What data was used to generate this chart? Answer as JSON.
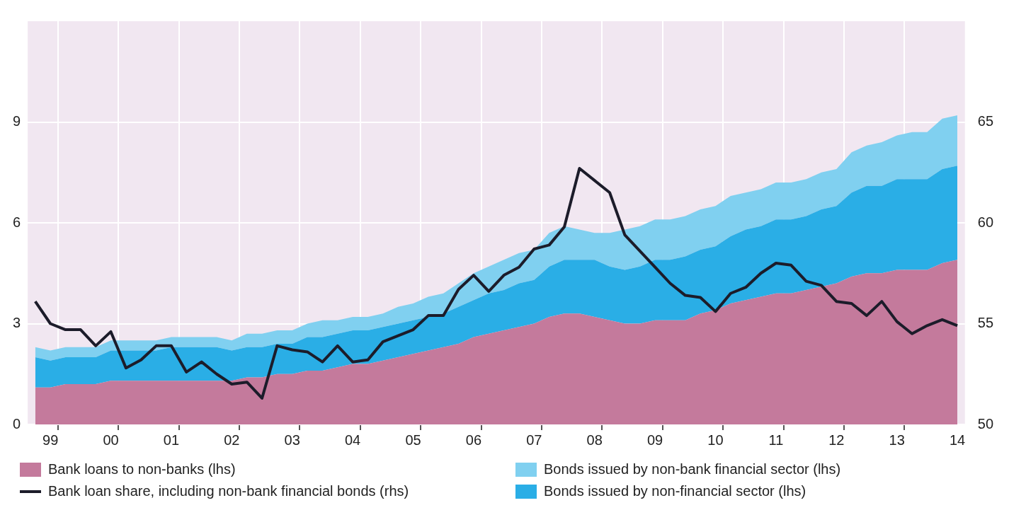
{
  "chart_data": {
    "type": "area",
    "stacked": true,
    "grid": true,
    "legend": "bottom",
    "categories": [
      null,
      "99",
      null,
      null,
      null,
      "00",
      null,
      null,
      null,
      "01",
      null,
      null,
      null,
      "02",
      null,
      null,
      null,
      "03",
      null,
      null,
      null,
      "04",
      null,
      null,
      null,
      "05",
      null,
      null,
      null,
      "06",
      null,
      null,
      null,
      "07",
      null,
      null,
      null,
      "08",
      null,
      null,
      null,
      "09",
      null,
      null,
      null,
      "10",
      null,
      null,
      null,
      "11",
      null,
      null,
      null,
      "12",
      null,
      null,
      null,
      "13",
      null,
      null,
      null,
      "14"
    ],
    "ylim": [
      0,
      12
    ],
    "yticks": [
      0,
      3,
      6,
      9
    ],
    "y2lim": [
      50,
      70
    ],
    "y2ticks": [
      50,
      55,
      60,
      65
    ],
    "series": [
      {
        "name": "Bank loans to non-banks (lhs)",
        "color": "#c47a9c",
        "values": [
          1.1,
          1.1,
          1.2,
          1.2,
          1.2,
          1.3,
          1.3,
          1.3,
          1.3,
          1.3,
          1.3,
          1.3,
          1.3,
          1.3,
          1.4,
          1.4,
          1.5,
          1.5,
          1.6,
          1.6,
          1.7,
          1.8,
          1.8,
          1.9,
          2.0,
          2.1,
          2.2,
          2.3,
          2.4,
          2.6,
          2.7,
          2.8,
          2.9,
          3.0,
          3.2,
          3.3,
          3.3,
          3.2,
          3.1,
          3.0,
          3.0,
          3.1,
          3.1,
          3.1,
          3.3,
          3.4,
          3.6,
          3.7,
          3.8,
          3.9,
          3.9,
          4.0,
          4.1,
          4.2,
          4.4,
          4.5,
          4.5,
          4.6,
          4.6,
          4.6,
          4.8,
          4.9
        ]
      },
      {
        "name": "Bonds issued by non-financial sector (lhs)",
        "color": "#2aaee6",
        "values": [
          0.9,
          0.8,
          0.8,
          0.8,
          0.8,
          0.9,
          0.9,
          0.9,
          0.9,
          1.0,
          1.0,
          1.0,
          1.0,
          0.9,
          0.9,
          0.9,
          0.9,
          0.9,
          1.0,
          1.0,
          1.0,
          1.0,
          1.0,
          1.0,
          1.0,
          1.0,
          1.0,
          1.0,
          1.1,
          1.1,
          1.2,
          1.2,
          1.3,
          1.3,
          1.5,
          1.6,
          1.6,
          1.7,
          1.6,
          1.6,
          1.7,
          1.8,
          1.8,
          1.9,
          1.9,
          1.9,
          2.0,
          2.1,
          2.1,
          2.2,
          2.2,
          2.2,
          2.3,
          2.3,
          2.5,
          2.6,
          2.6,
          2.7,
          2.7,
          2.7,
          2.8,
          2.8
        ]
      },
      {
        "name": "Bonds issued by non-bank financial sector (lhs)",
        "color": "#80d0f0",
        "values": [
          0.3,
          0.3,
          0.3,
          0.3,
          0.3,
          0.3,
          0.3,
          0.3,
          0.3,
          0.3,
          0.3,
          0.3,
          0.3,
          0.3,
          0.4,
          0.4,
          0.4,
          0.4,
          0.4,
          0.5,
          0.4,
          0.4,
          0.4,
          0.4,
          0.5,
          0.5,
          0.6,
          0.6,
          0.7,
          0.8,
          0.8,
          0.9,
          0.9,
          0.9,
          1.0,
          1.0,
          0.9,
          0.8,
          1.0,
          1.2,
          1.2,
          1.2,
          1.2,
          1.2,
          1.2,
          1.2,
          1.2,
          1.1,
          1.1,
          1.1,
          1.1,
          1.1,
          1.1,
          1.1,
          1.2,
          1.2,
          1.3,
          1.3,
          1.4,
          1.4,
          1.5,
          1.5
        ]
      },
      {
        "name": "Bank loan share, including non-bank financial bonds (rhs)",
        "type": "line",
        "axis": "y2",
        "color": "#1c1c2a",
        "values": [
          56.1,
          55.0,
          54.7,
          54.7,
          53.9,
          54.6,
          52.8,
          53.2,
          53.9,
          53.9,
          52.6,
          53.1,
          52.5,
          52.0,
          52.1,
          51.3,
          53.9,
          53.7,
          53.6,
          53.1,
          53.9,
          53.1,
          53.2,
          54.1,
          54.4,
          54.7,
          55.4,
          55.4,
          56.7,
          57.4,
          56.6,
          57.4,
          57.8,
          58.7,
          58.9,
          59.8,
          62.7,
          62.1,
          61.5,
          59.4,
          58.6,
          57.8,
          57.0,
          56.4,
          56.3,
          55.6,
          56.5,
          56.8,
          57.5,
          58.0,
          57.9,
          57.1,
          56.9,
          56.1,
          56.0,
          55.4,
          56.1,
          55.1,
          54.5,
          54.9,
          55.2,
          54.9
        ]
      }
    ]
  }
}
